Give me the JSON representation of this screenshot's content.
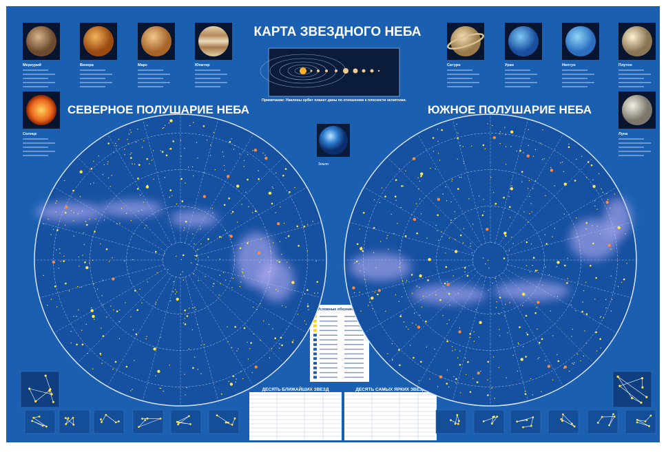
{
  "header": {
    "title": "КАРТА ЗВЕЗДНОГО НЕБА",
    "note": "Примечание: Наклоны орбит планет даны по отношению к плоскости эклиптики."
  },
  "planets": [
    {
      "name": "Меркурий"
    },
    {
      "name": "Венера"
    },
    {
      "name": "Марс"
    },
    {
      "name": "Юпитер"
    },
    {
      "name": "Солнце"
    },
    {
      "name": "Сатурн"
    },
    {
      "name": "Уран"
    },
    {
      "name": "Нептун"
    },
    {
      "name": "Плутон"
    },
    {
      "name": "Луна"
    },
    {
      "name": "Земля"
    }
  ],
  "hemispheres": {
    "north": "СЕВЕРНОЕ ПОЛУШАРИЕ НЕБА",
    "south": "ЮЖНОЕ ПОЛУШАРИЕ НЕБА"
  },
  "legend": {
    "title": "Условные обозначения"
  },
  "tables": {
    "nearest": "ДЕСЯТЬ БЛИЖАЙШИХ ЗВЕЗД",
    "brightest": "ДЕСЯТЬ САМЫХ ЯРКИХ ЗВЕЗД"
  }
}
